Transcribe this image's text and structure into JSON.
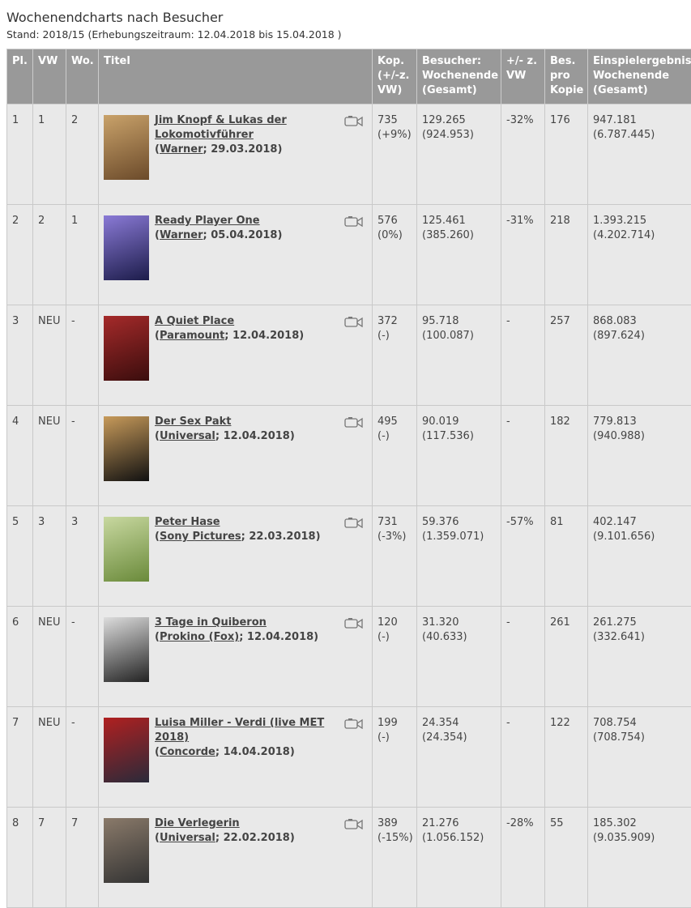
{
  "header": {
    "title": "Wochenendcharts nach Besucher",
    "subtitle": "Stand: 2018/15 (Erhebungszeitraum: 12.04.2018 bis 15.04.2018 )"
  },
  "table": {
    "columns": [
      "Pl.",
      "VW",
      "Wo.",
      "Titel",
      "Kop. (+/-z. VW)",
      "Besucher: Wochenende (Gesamt)",
      "+/- z. VW",
      "Bes. pro Kopie",
      "Einspielergebnis: Wochenende (Gesamt)"
    ],
    "rows": [
      {
        "place": "1",
        "prev": "1",
        "weeks": "2",
        "title": "Jim Knopf & Lukas der Lokomotivführer",
        "open": "(",
        "distributor": "Warner",
        "rest": "; 29.03.2018)",
        "copies": "735",
        "copies_change": "(+9%)",
        "visitors": "129.265",
        "visitors_total": "(924.953)",
        "change": "-32%",
        "per_copy": "176",
        "revenue": "947.181",
        "revenue_total": "(6.787.445)"
      },
      {
        "place": "2",
        "prev": "2",
        "weeks": "1",
        "title": "Ready Player One",
        "open": "(",
        "distributor": "Warner",
        "rest": "; 05.04.2018)",
        "copies": "576",
        "copies_change": "(0%)",
        "visitors": "125.461",
        "visitors_total": "(385.260)",
        "change": "-31%",
        "per_copy": "218",
        "revenue": "1.393.215",
        "revenue_total": "(4.202.714)"
      },
      {
        "place": "3",
        "prev": "NEU",
        "weeks": "-",
        "title": "A Quiet Place",
        "open": "(",
        "distributor": "Paramount",
        "rest": "; 12.04.2018)",
        "copies": "372",
        "copies_change": "(-)",
        "visitors": "95.718",
        "visitors_total": "(100.087)",
        "change": "-",
        "per_copy": "257",
        "revenue": "868.083",
        "revenue_total": "(897.624)"
      },
      {
        "place": "4",
        "prev": "NEU",
        "weeks": "-",
        "title": "Der Sex Pakt",
        "open": "(",
        "distributor": "Universal",
        "rest": "; 12.04.2018)",
        "copies": "495",
        "copies_change": "(-)",
        "visitors": "90.019",
        "visitors_total": "(117.536)",
        "change": "-",
        "per_copy": "182",
        "revenue": "779.813",
        "revenue_total": "(940.988)"
      },
      {
        "place": "5",
        "prev": "3",
        "weeks": "3",
        "title": "Peter Hase",
        "open": "(",
        "distributor": "Sony Pictures",
        "rest": "; 22.03.2018)",
        "copies": "731",
        "copies_change": "(-3%)",
        "visitors": "59.376",
        "visitors_total": "(1.359.071)",
        "change": "-57%",
        "per_copy": "81",
        "revenue": "402.147",
        "revenue_total": "(9.101.656)"
      },
      {
        "place": "6",
        "prev": "NEU",
        "weeks": "-",
        "title": "3 Tage in Quiberon",
        "open": "(",
        "distributor": "Prokino (Fox)",
        "rest": "; 12.04.2018)",
        "copies": "120",
        "copies_change": "(-)",
        "visitors": "31.320",
        "visitors_total": "(40.633)",
        "change": "-",
        "per_copy": "261",
        "revenue": "261.275",
        "revenue_total": "(332.641)"
      },
      {
        "place": "7",
        "prev": "NEU",
        "weeks": "-",
        "title": "Luisa Miller - Verdi (live MET 2018)",
        "open": "(",
        "distributor": "Concorde",
        "rest": "; 14.04.2018)",
        "copies": "199",
        "copies_change": "(-)",
        "visitors": "24.354",
        "visitors_total": "(24.354)",
        "change": "-",
        "per_copy": "122",
        "revenue": "708.754",
        "revenue_total": "(708.754)"
      },
      {
        "place": "8",
        "prev": "7",
        "weeks": "7",
        "title": "Die Verlegerin",
        "open": "(",
        "distributor": "Universal",
        "rest": "; 22.02.2018)",
        "copies": "389",
        "copies_change": "(-15%)",
        "visitors": "21.276",
        "visitors_total": "(1.056.152)",
        "change": "-28%",
        "per_copy": "55",
        "revenue": "185.302",
        "revenue_total": "(9.035.909)"
      }
    ]
  }
}
